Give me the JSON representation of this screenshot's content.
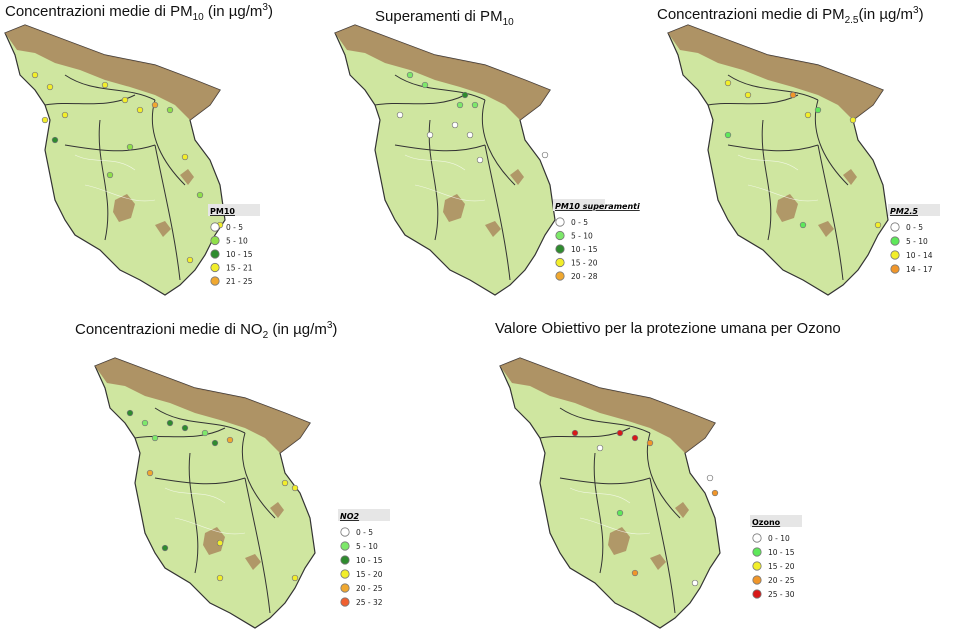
{
  "maps": [
    {
      "title": [
        {
          "t": "Concentrazioni medie di PM"
        },
        {
          "sub": "10"
        },
        {
          "t": " (in µg/m"
        },
        {
          "sup": "3"
        },
        {
          "t": ")"
        }
      ],
      "legend": {
        "title": "PM10",
        "items": [
          {
            "label": "0 - 5",
            "color": "#ffffff"
          },
          {
            "label": "5 - 10",
            "color": "#8fe04a"
          },
          {
            "label": "10 - 15",
            "color": "#2e8b2e"
          },
          {
            "label": "15 - 21",
            "color": "#f2ee2a"
          },
          {
            "label": "21 - 25",
            "color": "#f0a830"
          }
        ]
      }
    },
    {
      "title": [
        {
          "t": "Superamenti di PM"
        },
        {
          "sub": "10"
        }
      ],
      "legend": {
        "title": "PM10 superamenti",
        "items": [
          {
            "label": "0 - 5",
            "color": "#ffffff"
          },
          {
            "label": "5 - 10",
            "color": "#7de86a"
          },
          {
            "label": "10 - 15",
            "color": "#2e8b2e"
          },
          {
            "label": "15 - 20",
            "color": "#f2ee2a"
          },
          {
            "label": "20 - 28",
            "color": "#f0a830"
          }
        ]
      }
    },
    {
      "title": [
        {
          "t": "Concentrazioni medie di PM"
        },
        {
          "sub": "2.5"
        },
        {
          "t": "(in µg/m"
        },
        {
          "sup": "3"
        },
        {
          "t": ")"
        }
      ],
      "legend": {
        "title": "PM2.5",
        "items": [
          {
            "label": "0 - 5",
            "color": "#ffffff"
          },
          {
            "label": "5 - 10",
            "color": "#5ee85a"
          },
          {
            "label": "10 - 14",
            "color": "#f2ee2a"
          },
          {
            "label": "14 - 17",
            "color": "#f0962a"
          }
        ]
      }
    },
    {
      "title": [
        {
          "t": "Concentrazioni medie di NO"
        },
        {
          "sub": "2"
        },
        {
          "t": " (in µg/m"
        },
        {
          "sup": "3"
        },
        {
          "t": ")"
        }
      ],
      "legend": {
        "title": "NO2",
        "items": [
          {
            "label": "0 - 5",
            "color": "#ffffff"
          },
          {
            "label": "5 - 10",
            "color": "#7de86a"
          },
          {
            "label": "10 - 15",
            "color": "#2e8b2e"
          },
          {
            "label": "15 - 20",
            "color": "#f2ee2a"
          },
          {
            "label": "20 - 25",
            "color": "#f0a830"
          },
          {
            "label": "25 - 32",
            "color": "#f06030"
          }
        ]
      }
    },
    {
      "title": [
        {
          "t": "Valore Obiettivo per la protezione umana per Ozono"
        }
      ],
      "legend": {
        "title": "Ozono",
        "items": [
          {
            "label": "0 - 10",
            "color": "#ffffff"
          },
          {
            "label": "10 - 15",
            "color": "#5ee85a"
          },
          {
            "label": "15 - 20",
            "color": "#f2ee2a"
          },
          {
            "label": "20 - 25",
            "color": "#f0962a"
          },
          {
            "label": "25 - 30",
            "color": "#d81818"
          }
        ]
      }
    }
  ]
}
